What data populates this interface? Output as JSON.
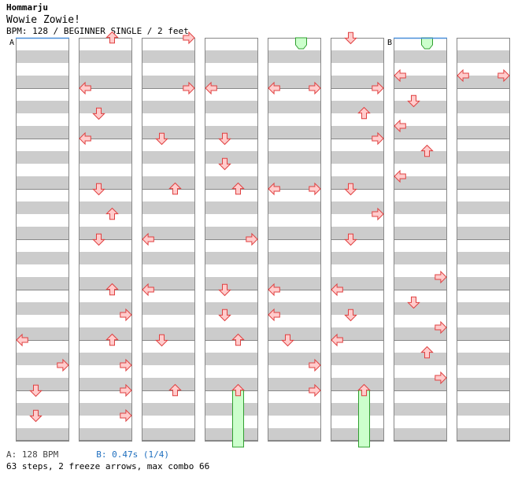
{
  "header": {
    "artist": "Hommarju",
    "title": "Wowie Zowie!",
    "info": "BPM: 128 / BEGINNER SINGLE / 2 feet"
  },
  "markers": {
    "a": "A",
    "b": "B"
  },
  "footer": {
    "bpm_a": "A: 128 BPM",
    "bpm_b": "B: 0.47s (1/4)",
    "summary": "63 steps, 2 freeze arrows, max combo 66"
  },
  "colors": {
    "arrow_fill": "#ffcccc",
    "arrow_stroke": "#e04040",
    "freeze_fill": "#ccffcc",
    "freeze_stroke": "#30a030",
    "stripe": "#cccccc",
    "measure_line": "#888888",
    "bpm_line": "#4a90d9"
  },
  "chart_data": {
    "type": "table",
    "columns": 8,
    "measures_per_column": 8,
    "subdivisions_per_measure": 4,
    "lanes": [
      "left",
      "down",
      "up",
      "right"
    ],
    "arrow_icons": {
      "left": "left-arrow-icon",
      "down": "down-arrow-icon",
      "up": "up-arrow-icon",
      "right": "right-arrow-icon"
    },
    "steps": [
      [
        0,
        6.0,
        "left"
      ],
      [
        0,
        6.5,
        "right"
      ],
      [
        0,
        7.0,
        "down"
      ],
      [
        0,
        7.5,
        "down"
      ],
      [
        1,
        0.0,
        "up"
      ],
      [
        1,
        1.0,
        "left"
      ],
      [
        1,
        1.5,
        "down"
      ],
      [
        1,
        2.0,
        "left"
      ],
      [
        1,
        3.0,
        "down"
      ],
      [
        1,
        3.5,
        "up"
      ],
      [
        1,
        4.0,
        "down"
      ],
      [
        1,
        5.0,
        "up"
      ],
      [
        1,
        5.5,
        "right"
      ],
      [
        1,
        6.0,
        "up"
      ],
      [
        1,
        6.5,
        "right"
      ],
      [
        1,
        7.0,
        "right"
      ],
      [
        1,
        7.5,
        "right"
      ],
      [
        2,
        0.0,
        "right"
      ],
      [
        2,
        1.0,
        "right"
      ],
      [
        2,
        2.0,
        "down"
      ],
      [
        2,
        3.0,
        "up"
      ],
      [
        2,
        4.0,
        "left"
      ],
      [
        2,
        5.0,
        "left"
      ],
      [
        2,
        6.0,
        "down"
      ],
      [
        2,
        7.0,
        "up"
      ],
      [
        3,
        1.0,
        "left"
      ],
      [
        3,
        2.0,
        "down"
      ],
      [
        3,
        2.5,
        "down"
      ],
      [
        3,
        3.0,
        "up"
      ],
      [
        3,
        4.0,
        "right"
      ],
      [
        3,
        5.0,
        "down"
      ],
      [
        3,
        5.5,
        "down"
      ],
      [
        3,
        6.0,
        "up"
      ],
      [
        4,
        1.0,
        "left"
      ],
      [
        4,
        1.0,
        "right"
      ],
      [
        4,
        3.0,
        "left"
      ],
      [
        4,
        3.0,
        "right"
      ],
      [
        4,
        5.0,
        "left"
      ],
      [
        4,
        5.5,
        "left"
      ],
      [
        4,
        6.0,
        "down"
      ],
      [
        4,
        6.5,
        "right"
      ],
      [
        4,
        7.0,
        "right"
      ],
      [
        5,
        0.0,
        "down"
      ],
      [
        5,
        1.0,
        "right"
      ],
      [
        5,
        1.5,
        "up"
      ],
      [
        5,
        2.0,
        "right"
      ],
      [
        5,
        3.0,
        "down"
      ],
      [
        5,
        3.5,
        "right"
      ],
      [
        5,
        4.0,
        "down"
      ],
      [
        5,
        5.0,
        "left"
      ],
      [
        5,
        5.5,
        "down"
      ],
      [
        5,
        6.0,
        "left"
      ],
      [
        6,
        0.75,
        "left"
      ],
      [
        6,
        1.25,
        "down"
      ],
      [
        6,
        1.75,
        "left"
      ],
      [
        6,
        2.25,
        "up"
      ],
      [
        6,
        2.75,
        "left"
      ],
      [
        6,
        4.75,
        "right"
      ],
      [
        6,
        5.25,
        "down"
      ],
      [
        6,
        5.75,
        "right"
      ],
      [
        6,
        6.25,
        "up"
      ],
      [
        6,
        6.75,
        "right"
      ],
      [
        7,
        0.75,
        "left"
      ],
      [
        7,
        0.75,
        "right"
      ]
    ],
    "freezes": [
      [
        3,
        7.0,
        8.0,
        "up"
      ],
      [
        4,
        0.0,
        0.0,
        "up"
      ],
      [
        5,
        7.0,
        8.0,
        "up"
      ],
      [
        6,
        0.0,
        0.0,
        "up"
      ]
    ],
    "bpm_changes": [
      {
        "label": "A",
        "column": 0,
        "measure": 0
      },
      {
        "label": "B",
        "column": 6,
        "measure": 0
      }
    ]
  }
}
